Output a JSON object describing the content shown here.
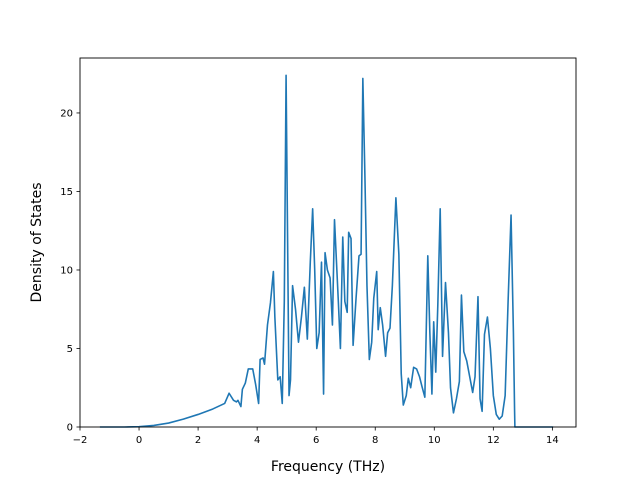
{
  "chart_data": {
    "type": "line",
    "title": "",
    "xlabel": "Frequency (THz)",
    "ylabel": "Density of States",
    "xlim": [
      -2.0,
      14.8
    ],
    "ylim": [
      0,
      23.5
    ],
    "xticks": [
      -2,
      0,
      2,
      4,
      6,
      8,
      10,
      12,
      14
    ],
    "yticks": [
      0,
      5,
      10,
      15,
      20
    ],
    "grid": false,
    "color": "#1f77b4",
    "series": [
      {
        "x": [
          -1.3,
          -0.5,
          0.0,
          0.5,
          1.0,
          1.5,
          2.0,
          2.5,
          2.9,
          3.05,
          3.2,
          3.3,
          3.35,
          3.45,
          3.5,
          3.6,
          3.7,
          3.85,
          3.95,
          4.05,
          4.1,
          4.2,
          4.25,
          4.35,
          4.45,
          4.55,
          4.6,
          4.7,
          4.78,
          4.85,
          4.92,
          4.98,
          5.08,
          5.13,
          5.2,
          5.3,
          5.4,
          5.5,
          5.6,
          5.7,
          5.8,
          5.88,
          5.95,
          6.02,
          6.1,
          6.18,
          6.25,
          6.3,
          6.38,
          6.47,
          6.55,
          6.62,
          6.7,
          6.75,
          6.82,
          6.9,
          6.97,
          7.05,
          7.1,
          7.18,
          7.25,
          7.35,
          7.45,
          7.52,
          7.58,
          7.65,
          7.72,
          7.8,
          7.88,
          7.95,
          8.05,
          8.1,
          8.17,
          8.25,
          8.35,
          8.42,
          8.5,
          8.58,
          8.7,
          8.8,
          8.88,
          8.95,
          9.05,
          9.12,
          9.2,
          9.3,
          9.4,
          9.5,
          9.58,
          9.68,
          9.78,
          9.85,
          9.92,
          9.98,
          10.05,
          10.12,
          10.2,
          10.28,
          10.38,
          10.48,
          10.55,
          10.65,
          10.75,
          10.85,
          10.92,
          11.0,
          11.1,
          11.2,
          11.3,
          11.38,
          11.48,
          11.55,
          11.62,
          11.7,
          11.8,
          11.9,
          12.0,
          12.1,
          12.2,
          12.3,
          12.4,
          12.5,
          12.6,
          12.68,
          12.72,
          12.73,
          12.8,
          13.5,
          14.0
        ],
        "y": [
          0.0,
          0.0,
          0.02,
          0.1,
          0.25,
          0.5,
          0.8,
          1.15,
          1.5,
          2.15,
          1.7,
          1.6,
          1.7,
          1.3,
          2.4,
          2.8,
          3.7,
          3.7,
          2.7,
          1.5,
          4.3,
          4.4,
          4.0,
          6.5,
          7.9,
          9.9,
          7.0,
          3.0,
          3.2,
          1.5,
          8.0,
          22.4,
          2.0,
          3.0,
          9.0,
          7.5,
          5.4,
          7.0,
          8.9,
          5.6,
          10.5,
          13.9,
          10.0,
          5.0,
          6.0,
          10.5,
          2.1,
          11.1,
          10.0,
          9.5,
          6.5,
          13.2,
          10.0,
          8.0,
          5.0,
          12.1,
          8.0,
          7.3,
          12.4,
          12.0,
          5.2,
          8.2,
          10.9,
          11.0,
          22.2,
          16.0,
          9.0,
          4.3,
          5.4,
          8.2,
          9.9,
          6.2,
          7.6,
          6.5,
          4.5,
          6.0,
          6.3,
          9.0,
          14.6,
          11.0,
          3.4,
          1.4,
          2.0,
          3.1,
          2.5,
          3.8,
          3.7,
          3.2,
          2.6,
          1.9,
          10.9,
          6.0,
          2.1,
          6.7,
          3.5,
          7.8,
          13.9,
          4.5,
          9.2,
          6.0,
          2.5,
          0.9,
          1.8,
          2.9,
          8.4,
          4.8,
          4.2,
          3.2,
          2.2,
          3.2,
          8.3,
          1.8,
          1.0,
          5.9,
          7.0,
          5.0,
          2.0,
          0.8,
          0.5,
          0.7,
          2.0,
          8.0,
          13.5,
          6.0,
          1.0,
          0.0,
          0.0,
          0.0,
          0.0
        ]
      }
    ]
  }
}
